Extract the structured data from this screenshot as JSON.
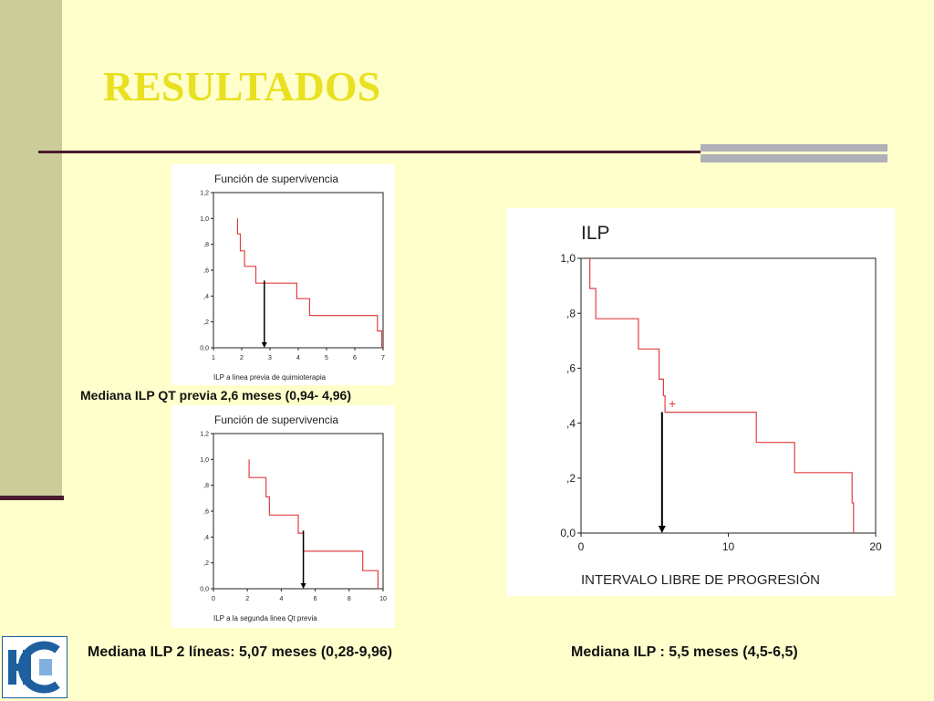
{
  "slide": {
    "title": "RESULTADOS",
    "colors": {
      "background": "#FFFFCC",
      "title": "#E8E020",
      "sidebar": "#CCCC99",
      "rule": "#4A1A2E",
      "curve": "#E04040"
    },
    "logo_icon": "hospital-logo-icon"
  },
  "captions": {
    "top_left": "Mediana ILP QT previa 2,6 meses (0,94- 4,96)",
    "bottom_left": "Mediana ILP 2 líneas: 5,07 meses (0,28-9,96)",
    "right": "Mediana ILP : 5,5 meses (4,5-6,5)"
  },
  "chart_data": [
    {
      "type": "line",
      "title": "Función de supervivencia",
      "xlabel": "ILP a linea previa de quimioterapia",
      "ylabel": "",
      "xlim": [
        1,
        7
      ],
      "ylim": [
        0,
        1.2
      ],
      "x_ticks": [
        1,
        2,
        3,
        4,
        5,
        6,
        7
      ],
      "x_tick_labels": [
        "1",
        "2",
        "3",
        "4",
        "5",
        "6",
        "7"
      ],
      "y_ticks": [
        0,
        0.2,
        0.4,
        0.6,
        0.8,
        1.0,
        1.2
      ],
      "y_tick_labels": [
        "0,0",
        ",2",
        ",4",
        ",6",
        ",8",
        "1,0",
        "1,2"
      ],
      "step_curve": {
        "x": [
          1.85,
          1.85,
          1.95,
          1.95,
          2.1,
          2.1,
          2.5,
          2.5,
          3.95,
          3.95,
          4.4,
          4.4,
          6.8,
          6.8,
          6.95,
          6.95
        ],
        "y": [
          1.0,
          0.88,
          0.88,
          0.75,
          0.75,
          0.63,
          0.63,
          0.5,
          0.5,
          0.38,
          0.38,
          0.25,
          0.25,
          0.13,
          0.13,
          0.0
        ]
      },
      "median_arrow_x": 2.8,
      "arrow_top_y": 0.52
    },
    {
      "type": "line",
      "title": "Función de supervivencia",
      "xlabel": "ILP a la segunda linea Qt previa",
      "ylabel": "",
      "xlim": [
        0,
        10
      ],
      "ylim": [
        0,
        1.2
      ],
      "x_ticks": [
        0,
        2,
        4,
        6,
        8,
        10
      ],
      "x_tick_labels": [
        "0",
        "2",
        "4",
        "6",
        "8",
        "10"
      ],
      "y_ticks": [
        0,
        0.2,
        0.4,
        0.6,
        0.8,
        1.0,
        1.2
      ],
      "y_tick_labels": [
        "0,0",
        ",2",
        ",4",
        ",6",
        ",8",
        "1,0",
        "1,2"
      ],
      "step_curve": {
        "x": [
          2.1,
          2.1,
          3.1,
          3.1,
          3.3,
          3.3,
          5.0,
          5.0,
          5.3,
          5.3,
          8.8,
          8.8,
          9.7,
          9.7
        ],
        "y": [
          1.0,
          0.86,
          0.86,
          0.71,
          0.71,
          0.57,
          0.57,
          0.43,
          0.43,
          0.29,
          0.29,
          0.14,
          0.14,
          0.0
        ]
      },
      "median_arrow_x": 5.3,
      "arrow_top_y": 0.45
    },
    {
      "type": "line",
      "title": "ILP",
      "xlabel": "INTERVALO LIBRE DE PROGRESIÓN",
      "ylabel": "",
      "xlim": [
        0,
        20
      ],
      "ylim": [
        0,
        1.0
      ],
      "x_ticks": [
        0,
        10,
        20
      ],
      "x_tick_labels": [
        "0",
        "10",
        "20"
      ],
      "y_ticks": [
        0,
        0.2,
        0.4,
        0.6,
        0.8,
        1.0
      ],
      "y_tick_labels": [
        "0,0",
        ",2",
        ",4",
        ",6",
        ",8",
        "1,0"
      ],
      "step_curve": {
        "x": [
          0.6,
          0.6,
          0.8,
          0.8,
          1.0,
          1.0,
          3.9,
          3.9,
          5.3,
          5.3,
          5.6,
          5.6,
          5.7,
          5.7,
          11.9,
          11.9,
          14.5,
          14.5,
          18.4,
          18.4,
          18.5,
          18.5
        ],
        "y": [
          1.0,
          0.89,
          0.89,
          0.89,
          0.89,
          0.78,
          0.78,
          0.67,
          0.67,
          0.56,
          0.56,
          0.5,
          0.5,
          0.44,
          0.44,
          0.33,
          0.33,
          0.22,
          0.22,
          0.11,
          0.11,
          0.0
        ]
      },
      "censor_marks": [
        {
          "x": 6.2,
          "y": 0.47
        }
      ],
      "median_arrow_x": 5.5,
      "arrow_top_y": 0.44
    }
  ]
}
